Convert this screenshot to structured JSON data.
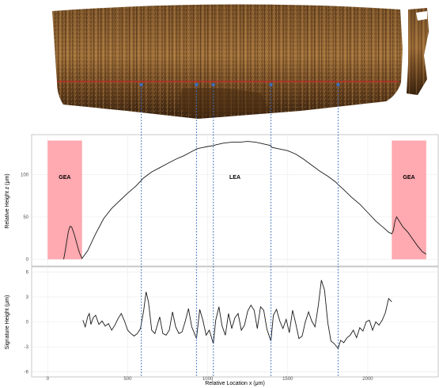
{
  "colors": {
    "region": "#ff9aa2",
    "guide": "#3a6fbf",
    "trace": "#1a1a1a",
    "scan_red_line": "#c0302a",
    "surface_dark": "#3b2410",
    "surface_light": "#b07a3c"
  },
  "image": {
    "description_icon": "bullet-surface-scan"
  },
  "chart_data": [
    {
      "type": "line",
      "panel": "height-profile",
      "xlabel": "",
      "ylabel": "Relative Height z (μm)",
      "xlim": [
        -100,
        2440
      ],
      "ylim": [
        -8,
        147
      ],
      "yticks": [
        0,
        50,
        100
      ],
      "grid": true,
      "regions": [
        {
          "label": "GEA",
          "x0": 0,
          "x1": 215,
          "y0": 0,
          "y1": 140
        },
        {
          "label": "LEA",
          "x0": null,
          "x1": null,
          "y0": null,
          "y1": null
        },
        {
          "label": "GEA",
          "x0": 2150,
          "x1": 2365,
          "y0": 0,
          "y1": 140
        }
      ],
      "guides_x": [
        585,
        930,
        1035,
        1395,
        1815
      ],
      "series": [
        {
          "name": "",
          "x": [
            100,
            110,
            120,
            130,
            140,
            150,
            160,
            170,
            180,
            190,
            200,
            215,
            250,
            300,
            350,
            400,
            450,
            500,
            550,
            585,
            600,
            650,
            700,
            750,
            800,
            850,
            900,
            930,
            950,
            1000,
            1035,
            1050,
            1100,
            1150,
            1200,
            1250,
            1300,
            1350,
            1395,
            1400,
            1450,
            1500,
            1550,
            1600,
            1650,
            1700,
            1750,
            1800,
            1815,
            1850,
            1900,
            1950,
            2000,
            2050,
            2100,
            2130,
            2150,
            2160,
            2170,
            2180,
            2190,
            2200,
            2220,
            2250,
            2280,
            2310,
            2340,
            2365
          ],
          "y": [
            0,
            10,
            22,
            33,
            39,
            38,
            33,
            27,
            20,
            13,
            7,
            1,
            10,
            30,
            48,
            60,
            69,
            78,
            86,
            93,
            96,
            103,
            108,
            113,
            118,
            122,
            127,
            130,
            131,
            133,
            134,
            135,
            137,
            138,
            138,
            139,
            138,
            136,
            134,
            132,
            130,
            128,
            124,
            118,
            111,
            104,
            98,
            91,
            88,
            82,
            73,
            65,
            55,
            45,
            37,
            32,
            30,
            34,
            45,
            50,
            47,
            44,
            38,
            32,
            24,
            16,
            9,
            6
          ]
        }
      ]
    },
    {
      "type": "line",
      "panel": "signature",
      "xlabel": "Relative Location x (μm)",
      "ylabel": "Signature Height (μm)",
      "xlim": [
        -100,
        2440
      ],
      "ylim": [
        -6.6,
        6.6
      ],
      "yticks": [
        -6,
        -3,
        0,
        3,
        6
      ],
      "xticks": [
        0,
        500,
        1000,
        1500,
        2000
      ],
      "grid": true,
      "guides_x": [
        585,
        930,
        1035,
        1395,
        1815
      ],
      "series": [
        {
          "name": "",
          "x": [
            220,
            235,
            250,
            260,
            270,
            285,
            300,
            320,
            340,
            360,
            380,
            400,
            420,
            440,
            460,
            480,
            500,
            520,
            540,
            560,
            580,
            600,
            615,
            630,
            650,
            670,
            700,
            720,
            740,
            760,
            780,
            800,
            820,
            840,
            860,
            880,
            900,
            920,
            930,
            950,
            970,
            990,
            1010,
            1035,
            1050,
            1070,
            1090,
            1110,
            1130,
            1150,
            1170,
            1190,
            1210,
            1230,
            1250,
            1270,
            1290,
            1310,
            1330,
            1350,
            1370,
            1395,
            1410,
            1430,
            1450,
            1470,
            1490,
            1510,
            1530,
            1550,
            1570,
            1590,
            1610,
            1630,
            1650,
            1670,
            1690,
            1710,
            1730,
            1750,
            1770,
            1790,
            1815,
            1830,
            1850,
            1870,
            1890,
            1910,
            1930,
            1950,
            1970,
            1990,
            2010,
            2030,
            2050,
            2070,
            2090,
            2110,
            2130,
            2150
          ],
          "y": [
            0.2,
            -0.6,
            0.6,
            1.0,
            -0.3,
            0.5,
            0.8,
            -0.3,
            0.1,
            -0.5,
            -0.2,
            -1.0,
            -0.4,
            0.4,
            1.0,
            0.1,
            -1.0,
            -1.4,
            -1.7,
            -1.4,
            -0.8,
            1.4,
            3.6,
            2.4,
            -1.0,
            -1.4,
            0.6,
            -1.4,
            -1.6,
            -1.0,
            1.2,
            -0.6,
            -1.4,
            -1.2,
            0.1,
            1.6,
            -0.6,
            -1.5,
            -2.0,
            1.5,
            0.2,
            -1.6,
            -1.0,
            -2.6,
            0.2,
            1.8,
            -0.5,
            -1.6,
            1.0,
            -0.8,
            0.5,
            1.0,
            -1.0,
            -0.4,
            1.3,
            2.0,
            1.4,
            -0.8,
            1.8,
            1.4,
            -0.9,
            -2.3,
            0.8,
            1.5,
            0.1,
            -0.8,
            0.3,
            -1.3,
            1.4,
            -0.2,
            -2.0,
            -1.7,
            0.0,
            1.2,
            0.1,
            -0.6,
            1.8,
            5.0,
            3.8,
            -0.1,
            -2.3,
            -2.6,
            -3.2,
            -2.2,
            -2.5,
            -1.9,
            -1.6,
            -1.0,
            -1.9,
            -0.7,
            -1.1,
            0.0,
            0.2,
            -1.0,
            0.0,
            -0.4,
            0.2,
            1.1,
            2.8,
            2.4
          ]
        }
      ]
    }
  ]
}
